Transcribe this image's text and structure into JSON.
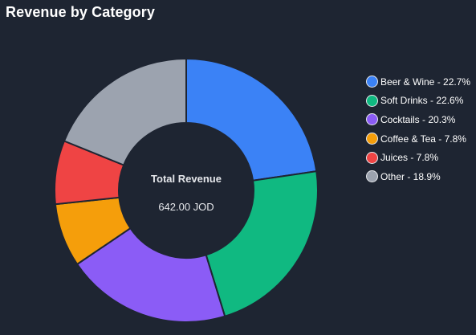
{
  "card": {
    "title": "Revenue by Category"
  },
  "chart_data": {
    "type": "pie",
    "variant": "doughnut",
    "title": "Revenue by Category",
    "categories": [
      "Beer & Wine",
      "Soft Drinks",
      "Cocktails",
      "Coffee & Tea",
      "Juices",
      "Other"
    ],
    "values": [
      22.7,
      22.6,
      20.3,
      7.8,
      7.8,
      18.9
    ],
    "unit": "%",
    "colors": [
      "#3b82f6",
      "#10b981",
      "#8b5cf6",
      "#f59e0b",
      "#ef4444",
      "#9ca3af"
    ],
    "legend_labels": [
      "Beer & Wine - 22.7%",
      "Soft Drinks - 22.6%",
      "Cocktails - 20.3%",
      "Coffee & Tea - 7.8%",
      "Juices - 7.8%",
      "Other - 18.9%"
    ],
    "legend_position": "right",
    "center_label": {
      "title": "Total Revenue",
      "value": "642.00 JOD"
    }
  },
  "colors": {
    "background": "#1e2532",
    "text": "#ffffff",
    "slice_border": "#1e2532"
  }
}
